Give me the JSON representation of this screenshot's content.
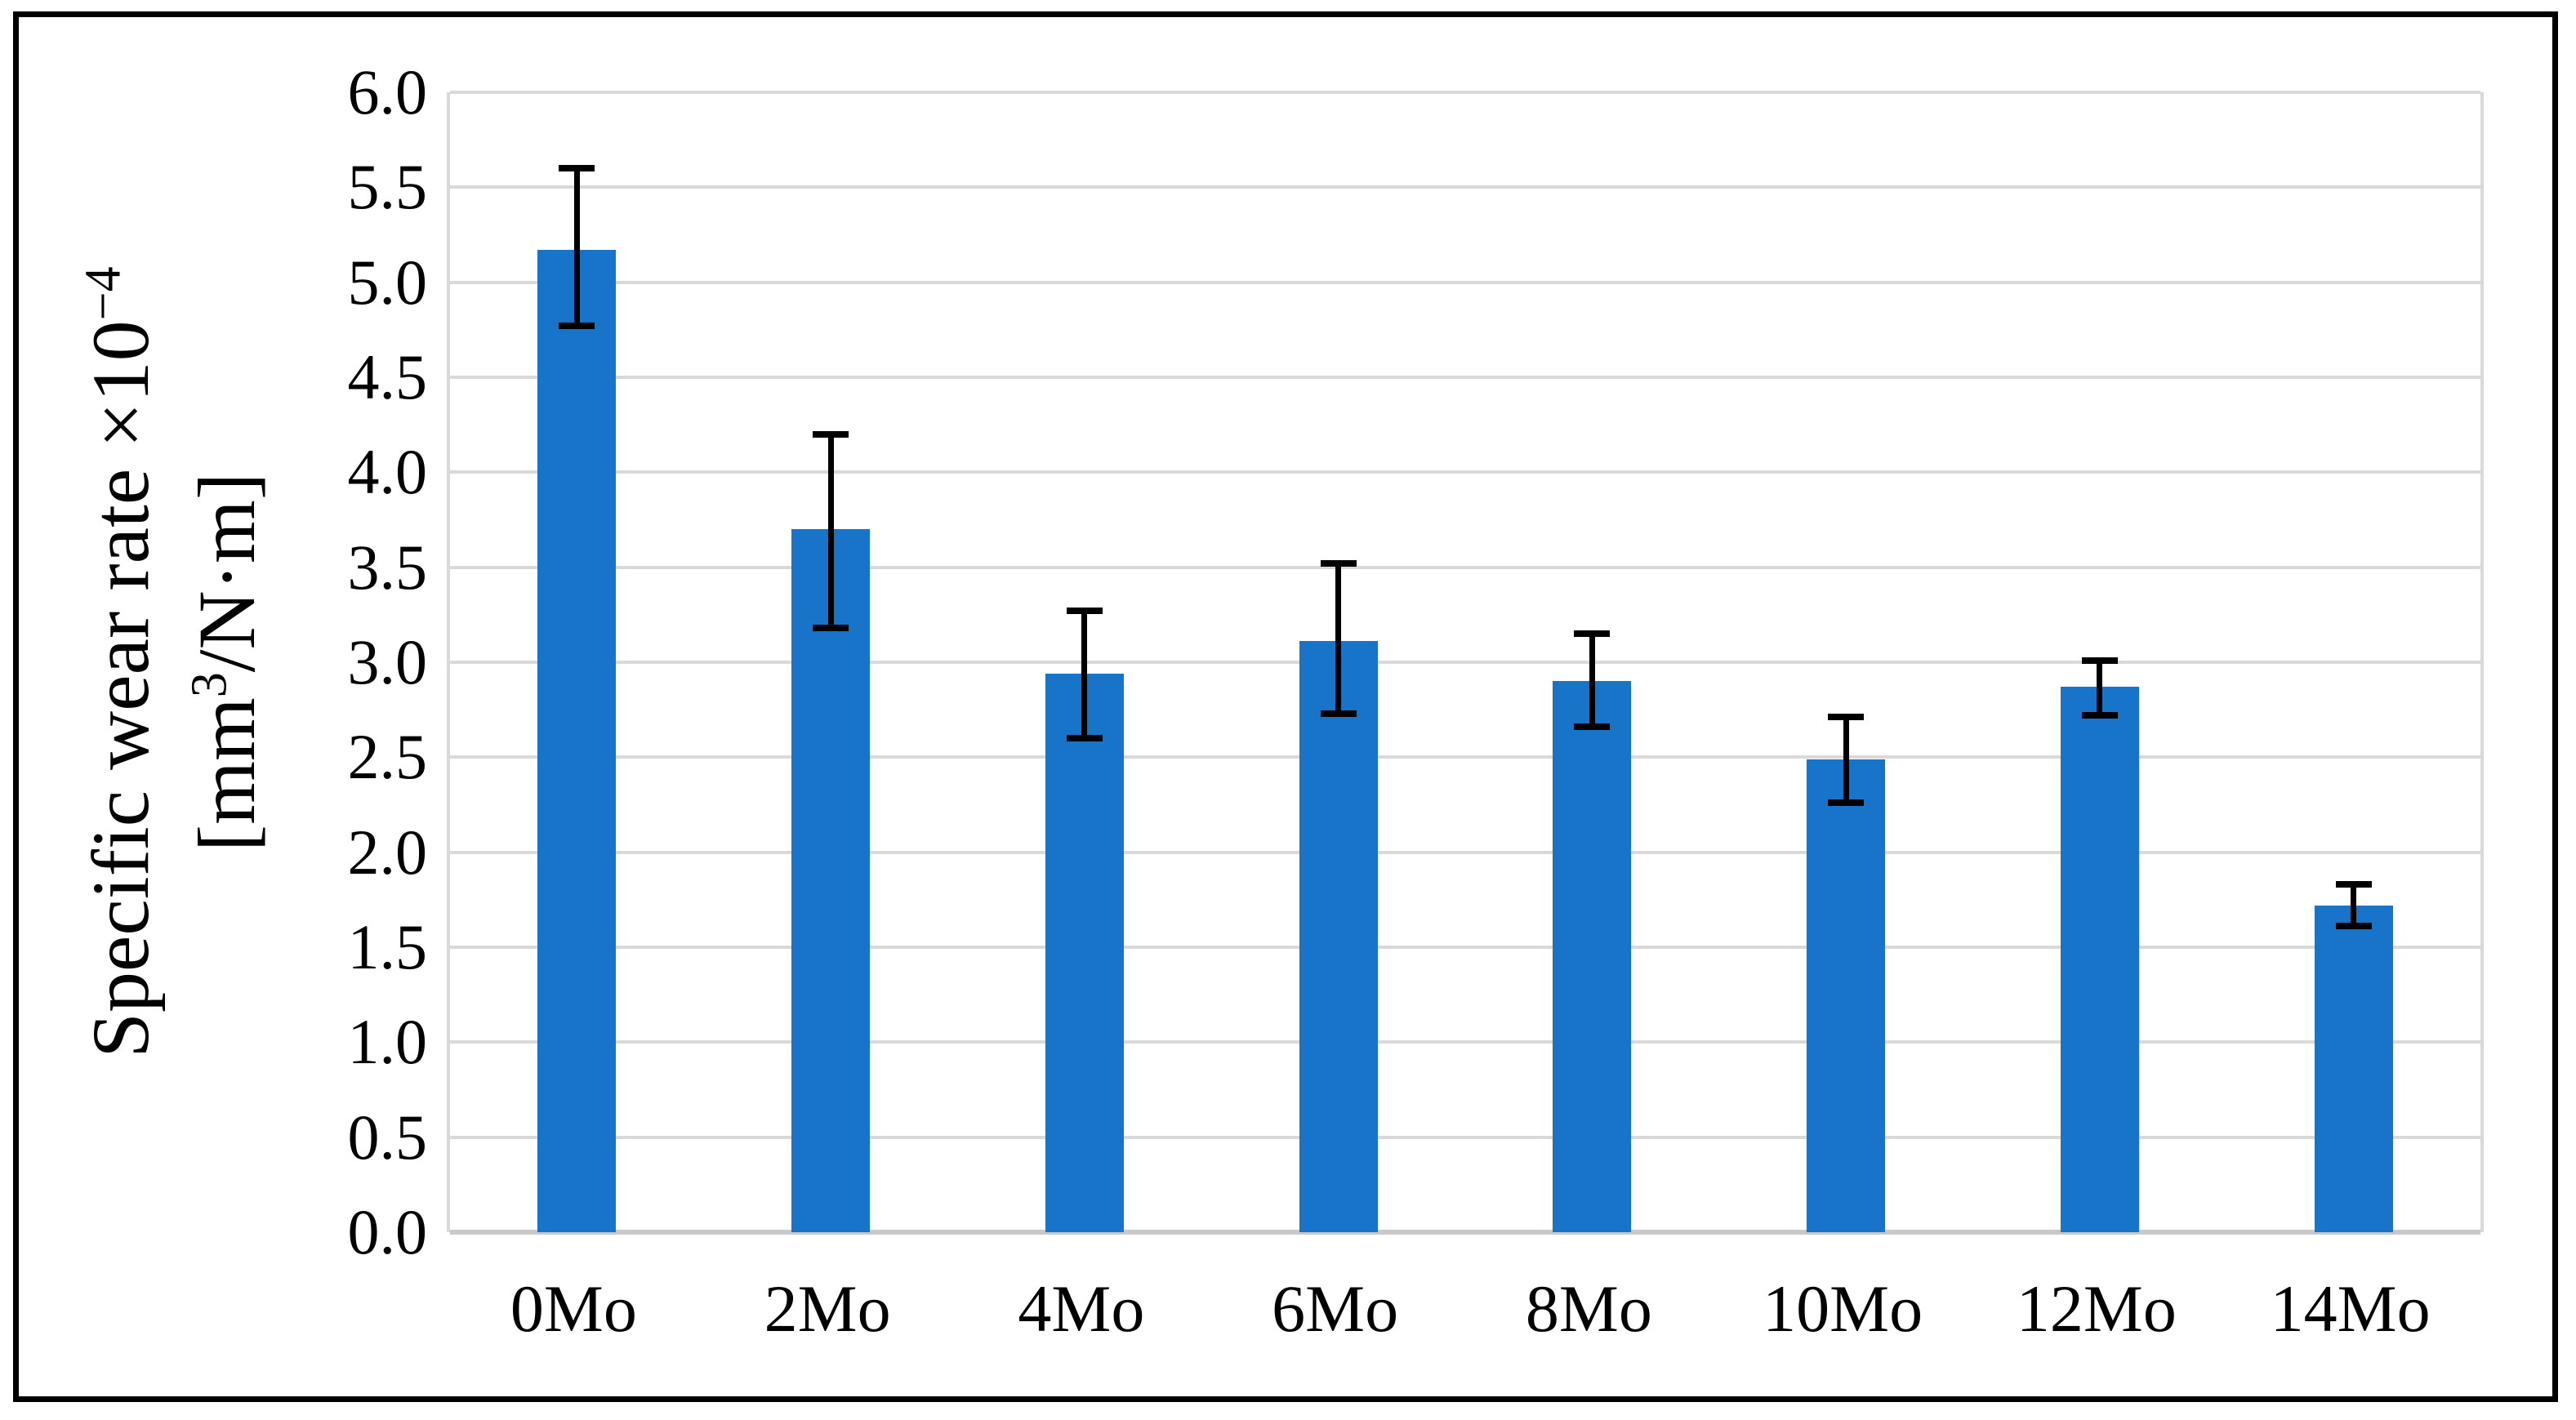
{
  "figure": {
    "background": "#ffffff",
    "border_color": "#000000"
  },
  "y_axis": {
    "title": {
      "line1_base": "Specific wear rate ×10",
      "line1_sup": "−4",
      "line2_pre": "[mm",
      "line2_sup": "3",
      "line2_post": "/N·m]"
    },
    "tick_labels": [
      "6.0",
      "5.5",
      "5.0",
      "4.5",
      "4.0",
      "3.5",
      "3.0",
      "2.5",
      "2.0",
      "1.5",
      "1.0",
      "0.5",
      "0.0"
    ]
  },
  "x_axis": {
    "labels": [
      "0Mo",
      "2Mo",
      "4Mo",
      "6Mo",
      "8Mo",
      "10Mo",
      "12Mo",
      "14Mo"
    ]
  },
  "chart_data": {
    "type": "bar",
    "categories": [
      "0Mo",
      "2Mo",
      "4Mo",
      "6Mo",
      "8Mo",
      "10Mo",
      "12Mo",
      "14Mo"
    ],
    "values": [
      5.17,
      3.7,
      2.94,
      3.11,
      2.9,
      2.49,
      2.87,
      1.72
    ],
    "error_bar_top": [
      5.6,
      4.2,
      3.27,
      3.52,
      3.15,
      2.71,
      3.01,
      1.83
    ],
    "error_bar_bottom": [
      4.77,
      3.18,
      2.6,
      2.73,
      2.66,
      2.26,
      2.72,
      1.61
    ],
    "title": "",
    "xlabel": "",
    "ylabel": "Specific wear rate ×10−4 [mm3/N·m]",
    "ylim": [
      0,
      6
    ],
    "ytick_step": 0.5,
    "grid": true,
    "legend": "none",
    "bar_color": "#1874c8",
    "error_bar_color": "#000000",
    "gridline_color": "#d9d9d9",
    "axis_line_color": "#c9c9c9"
  }
}
